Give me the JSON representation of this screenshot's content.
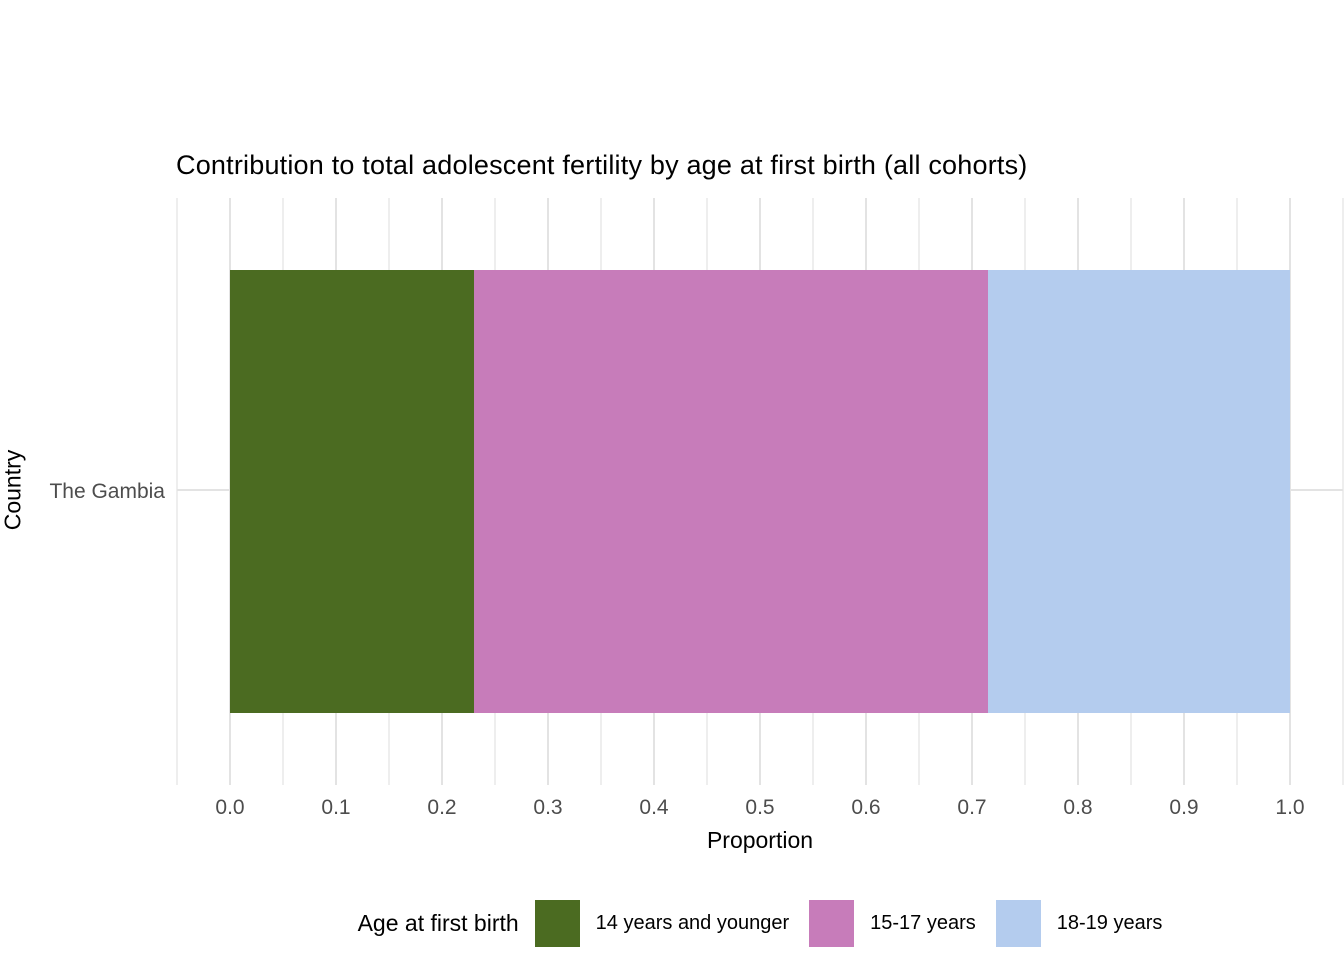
{
  "chart_data": {
    "type": "bar",
    "orientation": "horizontal",
    "stacked": true,
    "title": "Contribution to total adolescent fertility by age at first birth (all cohorts)",
    "xlabel": "Proportion",
    "ylabel": "Country",
    "categories": [
      "The Gambia"
    ],
    "series": [
      {
        "name": "14 years and younger",
        "color": "#4b6b21",
        "values": [
          0.23
        ]
      },
      {
        "name": "15-17 years",
        "color": "#c77cba",
        "values": [
          0.485
        ]
      },
      {
        "name": "18-19 years",
        "color": "#b4ccee",
        "values": [
          0.285
        ]
      }
    ],
    "xlim": [
      -0.05,
      1.05
    ],
    "x_ticks": [
      "0.0",
      "0.1",
      "0.2",
      "0.3",
      "0.4",
      "0.5",
      "0.6",
      "0.7",
      "0.8",
      "0.9",
      "1.0"
    ],
    "minor_grid_step": 0.05,
    "grid": "vertical major and minor, one horizontal major at category",
    "legend_title": "Age at first birth",
    "legend_position": "bottom",
    "background": "#ffffff",
    "grid_color": "#e3e3e3",
    "axis_text_color": "#4d4d4d"
  }
}
